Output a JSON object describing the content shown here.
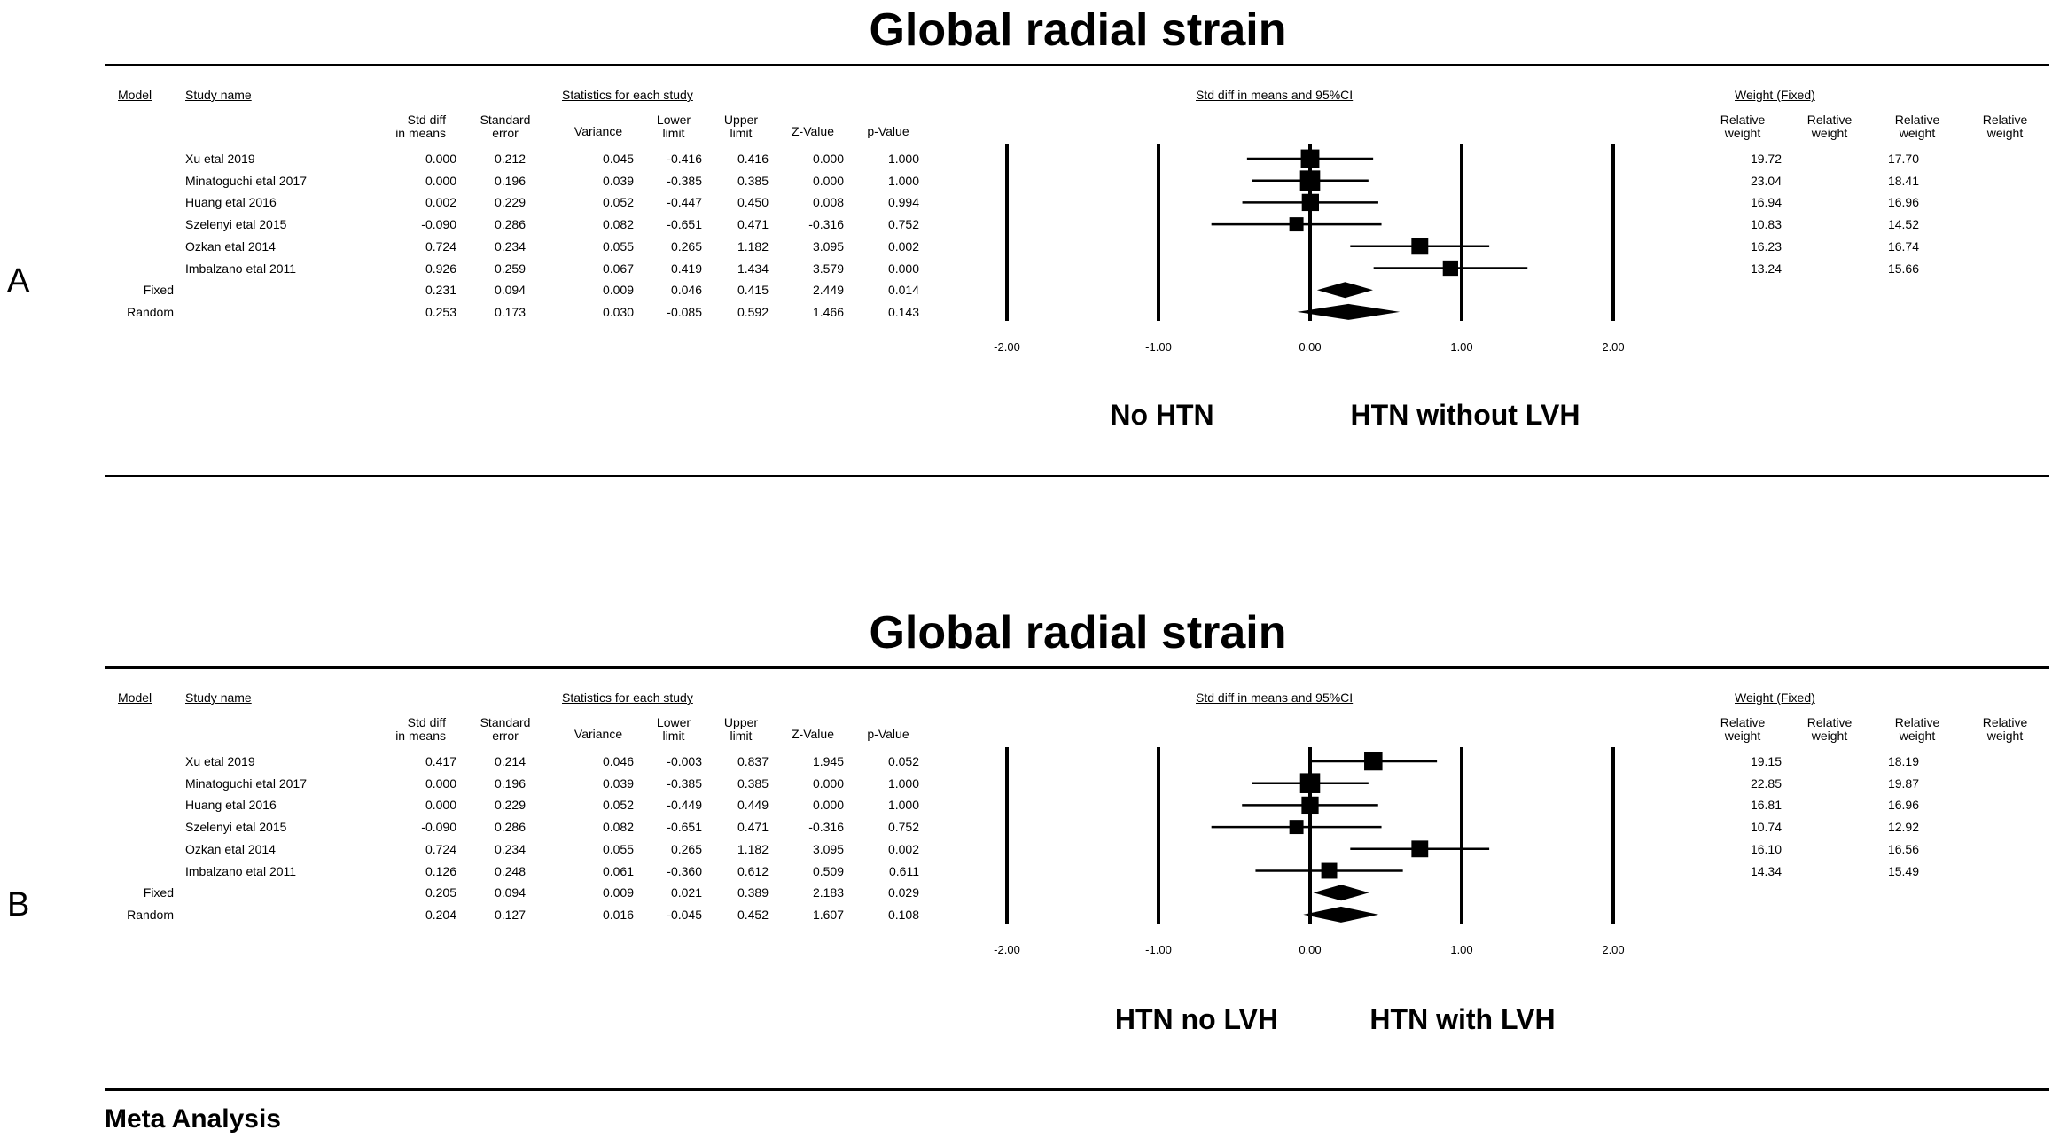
{
  "panels": [
    {
      "label": "A",
      "title": "Global radial strain",
      "headers": {
        "model": "Model",
        "study": "Study name",
        "stats_group": "Statistics for each study",
        "plot_group": "Std diff in means and 95%CI",
        "weight_group": "Weight (Fixed)",
        "std_diff": [
          "Std diff",
          "in means"
        ],
        "se": [
          "Standard",
          "error"
        ],
        "variance": "Variance",
        "lower": [
          "Lower",
          "limit"
        ],
        "upper": [
          "Upper",
          "limit"
        ],
        "z": "Z-Value",
        "p": "p-Value",
        "relw": [
          "Relative",
          "weight"
        ]
      },
      "ticks": [
        "-2.00",
        "-1.00",
        "0.00",
        "1.00",
        "2.00"
      ],
      "direction_left": "No HTN",
      "direction_right": "HTN without LVH"
    },
    {
      "label": "B",
      "title": "Global radial strain",
      "headers": {
        "model": "Model",
        "study": "Study name",
        "stats_group": "Statistics for each study",
        "plot_group": "Std diff in means and 95%CI",
        "weight_group": "Weight (Fixed)",
        "std_diff": [
          "Std diff",
          "in means"
        ],
        "se": [
          "Standard",
          "error"
        ],
        "variance": "Variance",
        "lower": [
          "Lower",
          "limit"
        ],
        "upper": [
          "Upper",
          "limit"
        ],
        "z": "Z-Value",
        "p": "p-Value",
        "relw": [
          "Relative",
          "weight"
        ]
      },
      "ticks": [
        "-2.00",
        "-1.00",
        "0.00",
        "1.00",
        "2.00"
      ],
      "direction_left": "HTN no LVH",
      "direction_right": "HTN with LVH"
    }
  ],
  "footer": "Meta Analysis",
  "chart_data": [
    {
      "type": "forest",
      "title": "Global radial strain",
      "xlim": [
        -2,
        2
      ],
      "xticks": [
        -2,
        -1,
        0,
        1,
        2
      ],
      "xlabel_left": "No HTN",
      "xlabel_right": "HTN without LVH",
      "rows": [
        {
          "model": "",
          "study": "Xu etal 2019",
          "std_diff": "0.000",
          "se": "0.212",
          "variance": "0.045",
          "lower": "-0.416",
          "upper": "0.416",
          "z": "0.000",
          "p": "1.000",
          "w1": "19.72",
          "w2": "17.70",
          "est": 0.0,
          "lo": -0.416,
          "hi": 0.416,
          "weight": 19.72
        },
        {
          "model": "",
          "study": "Minatoguchi etal 2017",
          "std_diff": "0.000",
          "se": "0.196",
          "variance": "0.039",
          "lower": "-0.385",
          "upper": "0.385",
          "z": "0.000",
          "p": "1.000",
          "w1": "23.04",
          "w2": "18.41",
          "est": 0.0,
          "lo": -0.385,
          "hi": 0.385,
          "weight": 23.04
        },
        {
          "model": "",
          "study": "Huang etal 2016",
          "std_diff": "0.002",
          "se": "0.229",
          "variance": "0.052",
          "lower": "-0.447",
          "upper": "0.450",
          "z": "0.008",
          "p": "0.994",
          "w1": "16.94",
          "w2": "16.96",
          "est": 0.002,
          "lo": -0.447,
          "hi": 0.45,
          "weight": 16.94
        },
        {
          "model": "",
          "study": "Szelenyi etal 2015",
          "std_diff": "-0.090",
          "se": "0.286",
          "variance": "0.082",
          "lower": "-0.651",
          "upper": "0.471",
          "z": "-0.316",
          "p": "0.752",
          "w1": "10.83",
          "w2": "14.52",
          "est": -0.09,
          "lo": -0.651,
          "hi": 0.471,
          "weight": 10.83
        },
        {
          "model": "",
          "study": "Ozkan etal 2014",
          "std_diff": "0.724",
          "se": "0.234",
          "variance": "0.055",
          "lower": "0.265",
          "upper": "1.182",
          "z": "3.095",
          "p": "0.002",
          "w1": "16.23",
          "w2": "16.74",
          "est": 0.724,
          "lo": 0.265,
          "hi": 1.182,
          "weight": 16.23
        },
        {
          "model": "",
          "study": "Imbalzano etal 2011",
          "std_diff": "0.926",
          "se": "0.259",
          "variance": "0.067",
          "lower": "0.419",
          "upper": "1.434",
          "z": "3.579",
          "p": "0.000",
          "w1": "13.24",
          "w2": "15.66",
          "est": 0.926,
          "lo": 0.419,
          "hi": 1.434,
          "weight": 13.24
        },
        {
          "model": "Fixed",
          "study": "",
          "std_diff": "0.231",
          "se": "0.094",
          "variance": "0.009",
          "lower": "0.046",
          "upper": "0.415",
          "z": "2.449",
          "p": "0.014",
          "w1": "",
          "w2": "",
          "est": 0.231,
          "lo": 0.046,
          "hi": 0.415,
          "summary": true
        },
        {
          "model": "Random",
          "study": "",
          "std_diff": "0.253",
          "se": "0.173",
          "variance": "0.030",
          "lower": "-0.085",
          "upper": "0.592",
          "z": "1.466",
          "p": "0.143",
          "w1": "",
          "w2": "",
          "est": 0.253,
          "lo": -0.085,
          "hi": 0.592,
          "summary": true
        }
      ]
    },
    {
      "type": "forest",
      "title": "Global radial strain",
      "xlim": [
        -2,
        2
      ],
      "xticks": [
        -2,
        -1,
        0,
        1,
        2
      ],
      "xlabel_left": "HTN no LVH",
      "xlabel_right": "HTN with LVH",
      "rows": [
        {
          "model": "",
          "study": "Xu etal 2019",
          "std_diff": "0.417",
          "se": "0.214",
          "variance": "0.046",
          "lower": "-0.003",
          "upper": "0.837",
          "z": "1.945",
          "p": "0.052",
          "w1": "19.15",
          "w2": "18.19",
          "est": 0.417,
          "lo": -0.003,
          "hi": 0.837,
          "weight": 19.15
        },
        {
          "model": "",
          "study": "Minatoguchi etal 2017",
          "std_diff": "0.000",
          "se": "0.196",
          "variance": "0.039",
          "lower": "-0.385",
          "upper": "0.385",
          "z": "0.000",
          "p": "1.000",
          "w1": "22.85",
          "w2": "19.87",
          "est": 0.0,
          "lo": -0.385,
          "hi": 0.385,
          "weight": 22.85
        },
        {
          "model": "",
          "study": "Huang etal 2016",
          "std_diff": "0.000",
          "se": "0.229",
          "variance": "0.052",
          "lower": "-0.449",
          "upper": "0.449",
          "z": "0.000",
          "p": "1.000",
          "w1": "16.81",
          "w2": "16.96",
          "est": 0.0,
          "lo": -0.449,
          "hi": 0.449,
          "weight": 16.81
        },
        {
          "model": "",
          "study": "Szelenyi etal 2015",
          "std_diff": "-0.090",
          "se": "0.286",
          "variance": "0.082",
          "lower": "-0.651",
          "upper": "0.471",
          "z": "-0.316",
          "p": "0.752",
          "w1": "10.74",
          "w2": "12.92",
          "est": -0.09,
          "lo": -0.651,
          "hi": 0.471,
          "weight": 10.74
        },
        {
          "model": "",
          "study": "Ozkan etal 2014",
          "std_diff": "0.724",
          "se": "0.234",
          "variance": "0.055",
          "lower": "0.265",
          "upper": "1.182",
          "z": "3.095",
          "p": "0.002",
          "w1": "16.10",
          "w2": "16.56",
          "est": 0.724,
          "lo": 0.265,
          "hi": 1.182,
          "weight": 16.1
        },
        {
          "model": "",
          "study": "Imbalzano etal 2011",
          "std_diff": "0.126",
          "se": "0.248",
          "variance": "0.061",
          "lower": "-0.360",
          "upper": "0.612",
          "z": "0.509",
          "p": "0.611",
          "w1": "14.34",
          "w2": "15.49",
          "est": 0.126,
          "lo": -0.36,
          "hi": 0.612,
          "weight": 14.34
        },
        {
          "model": "Fixed",
          "study": "",
          "std_diff": "0.205",
          "se": "0.094",
          "variance": "0.009",
          "lower": "0.021",
          "upper": "0.389",
          "z": "2.183",
          "p": "0.029",
          "w1": "",
          "w2": "",
          "est": 0.205,
          "lo": 0.021,
          "hi": 0.389,
          "summary": true
        },
        {
          "model": "Random",
          "study": "",
          "std_diff": "0.204",
          "se": "0.127",
          "variance": "0.016",
          "lower": "-0.045",
          "upper": "0.452",
          "z": "1.607",
          "p": "0.108",
          "w1": "",
          "w2": "",
          "est": 0.204,
          "lo": -0.045,
          "hi": 0.452,
          "summary": true
        }
      ]
    }
  ]
}
